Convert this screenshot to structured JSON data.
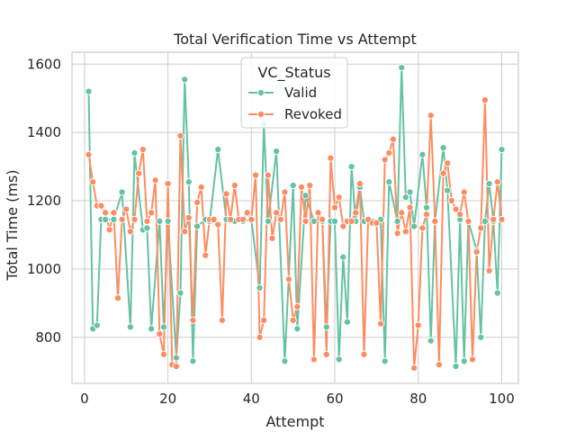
{
  "chart_data": {
    "type": "line",
    "title": "Total Verification Time vs Attempt",
    "xlabel": "Attempt",
    "ylabel": "Total Time (ms)",
    "xlim": [
      -3,
      104
    ],
    "ylim": [
      665,
      1635
    ],
    "xticks": [
      0,
      20,
      40,
      60,
      80,
      100
    ],
    "yticks": [
      800,
      1000,
      1200,
      1400,
      1600
    ],
    "grid": true,
    "legend": {
      "title": "VC_Status",
      "placement": "top-center"
    },
    "series": [
      {
        "name": "Valid",
        "color": "#66c2a5",
        "x": [
          1,
          2,
          3,
          4,
          5,
          7,
          9,
          11,
          12,
          14,
          15,
          16,
          18,
          19,
          20,
          22,
          23,
          24,
          25,
          26,
          27,
          29,
          30,
          32,
          34,
          35,
          36,
          38,
          40,
          42,
          43,
          44,
          46,
          48,
          50,
          51,
          53,
          55,
          57,
          58,
          59,
          60,
          61,
          62,
          63,
          64,
          65,
          66,
          67,
          69,
          71,
          72,
          73,
          75,
          76,
          77,
          78,
          79,
          81,
          82,
          83,
          84,
          86,
          87,
          89,
          90,
          91,
          92,
          94,
          95,
          96,
          97,
          98,
          99,
          100
        ],
        "y": [
          1520,
          825,
          835,
          1145,
          1145,
          1145,
          1225,
          830,
          1340,
          1115,
          1120,
          825,
          1140,
          830,
          1140,
          740,
          930,
          1555,
          1255,
          730,
          1125,
          1145,
          1140,
          1350,
          1145,
          1145,
          1140,
          1140,
          1145,
          945,
          1425,
          1140,
          1345,
          730,
          1245,
          825,
          1215,
          1140,
          1140,
          830,
          1140,
          1140,
          735,
          1035,
          845,
          1300,
          1140,
          1240,
          1140,
          1140,
          1145,
          730,
          1255,
          1140,
          1590,
          1210,
          1225,
          1125,
          1335,
          1180,
          790,
          1140,
          1355,
          1230,
          715,
          1145,
          730,
          1140,
          1055,
          800,
          1140,
          1250,
          1140,
          930,
          1350
        ]
      },
      {
        "name": "Revoked",
        "color": "#fc8d62",
        "x": [
          1,
          2,
          3,
          4,
          5,
          6,
          7,
          8,
          9,
          10,
          11,
          12,
          13,
          14,
          15,
          16,
          17,
          18,
          19,
          20,
          21,
          22,
          23,
          24,
          25,
          26,
          27,
          28,
          29,
          30,
          31,
          32,
          33,
          34,
          35,
          36,
          37,
          38,
          39,
          40,
          41,
          42,
          43,
          44,
          45,
          46,
          47,
          48,
          49,
          50,
          51,
          52,
          53,
          54,
          55,
          56,
          57,
          58,
          59,
          60,
          61,
          62,
          63,
          64,
          65,
          66,
          67,
          68,
          69,
          70,
          71,
          72,
          73,
          74,
          75,
          76,
          77,
          78,
          79,
          80,
          81,
          82,
          83,
          84,
          85,
          86,
          87,
          88,
          89,
          90,
          91,
          92,
          93,
          94,
          95,
          96,
          97,
          98,
          99,
          100
        ],
        "y": [
          1335,
          1255,
          1185,
          1185,
          1165,
          1115,
          1165,
          915,
          1145,
          1175,
          1110,
          1145,
          1280,
          1350,
          1140,
          1165,
          1260,
          810,
          750,
          1250,
          720,
          715,
          1390,
          1110,
          1150,
          850,
          1195,
          1240,
          1040,
          1145,
          1145,
          1130,
          850,
          1220,
          1145,
          1245,
          1145,
          1145,
          1165,
          1145,
          1275,
          800,
          850,
          1275,
          1090,
          1165,
          1145,
          1225,
          970,
          850,
          890,
          1240,
          1140,
          1245,
          735,
          1165,
          1145,
          750,
          1325,
          1180,
          1210,
          1125,
          1140,
          1140,
          1165,
          1250,
          750,
          1145,
          1135,
          1135,
          840,
          1320,
          1340,
          1380,
          1105,
          1165,
          1110,
          1180,
          710,
          835,
          1120,
          1160,
          1450,
          1140,
          720,
          1280,
          1310,
          1200,
          1175,
          1160,
          1225,
          1140,
          735,
          1050,
          1120,
          1495,
          995,
          1145,
          1255,
          1145
        ]
      }
    ]
  }
}
